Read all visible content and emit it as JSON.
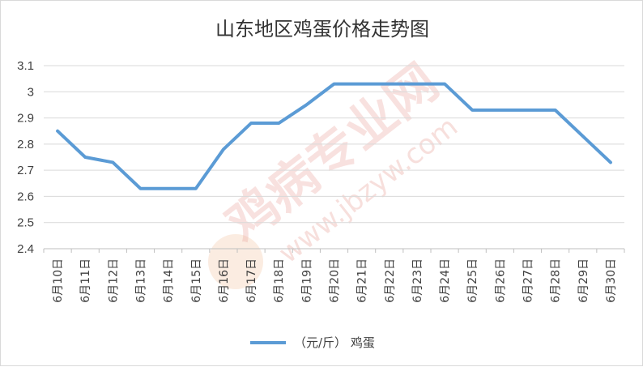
{
  "chart_data": {
    "type": "line",
    "title": "山东地区鸡蛋价格走势图",
    "categories": [
      "6月10日",
      "6月11日",
      "6月12日",
      "6月13日",
      "6月14日",
      "6月15日",
      "6月16日",
      "6月17日",
      "6月18日",
      "6月19日",
      "6月20日",
      "6月21日",
      "6月22日",
      "6月23日",
      "6月24日",
      "6月25日",
      "6月26日",
      "6月27日",
      "6月28日",
      "6月29日",
      "6月30日"
    ],
    "series": [
      {
        "name": "（元/斤） 鸡蛋",
        "color": "#5b9bd5",
        "values": [
          2.85,
          2.75,
          2.73,
          2.63,
          2.63,
          2.63,
          2.78,
          2.88,
          2.88,
          2.95,
          3.03,
          3.03,
          3.03,
          3.03,
          3.03,
          2.93,
          2.93,
          2.93,
          2.93,
          2.83,
          2.73
        ]
      }
    ],
    "ylim": [
      2.4,
      3.1
    ],
    "yticks": [
      "2.4",
      "2.5",
      "2.6",
      "2.7",
      "2.8",
      "2.9",
      "3",
      "3.1"
    ],
    "grid": true,
    "legend_position": "bottom"
  },
  "watermark": {
    "text": "鸡病专业网",
    "url": "www.jbzyw.com"
  }
}
